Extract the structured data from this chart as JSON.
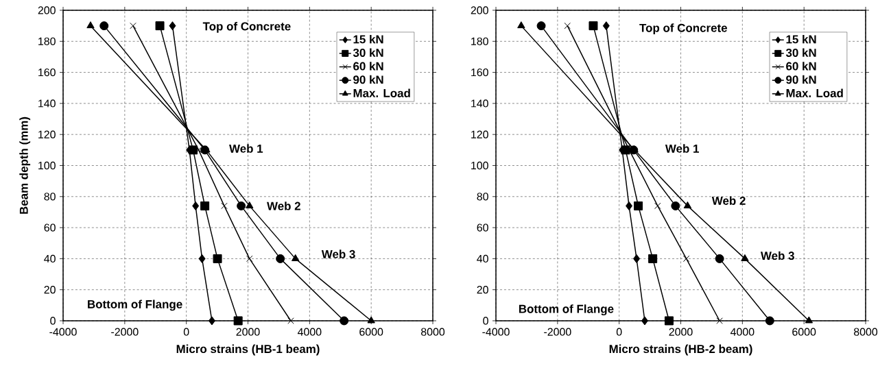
{
  "chart_data": [
    {
      "type": "line",
      "xlabel": "Micro strains (HB-1 beam)",
      "ylabel": "Beam depth (mm)",
      "grid": true,
      "legend": "top right",
      "line_style": "solid",
      "xlim": [
        -4000,
        8000
      ],
      "ylim": [
        0,
        200
      ],
      "xticks": [
        -4000,
        -2000,
        0,
        2000,
        4000,
        6000,
        8000
      ],
      "yticks": [
        0,
        20,
        40,
        60,
        80,
        100,
        120,
        140,
        160,
        180,
        200
      ],
      "series": [
        {
          "name": "15 kN",
          "color": "#000000",
          "marker": "diamond",
          "x": [
            -450,
            100,
            300,
            510,
            830
          ],
          "values": [
            190,
            110,
            74,
            40,
            0
          ]
        },
        {
          "name": "30 kN",
          "color": "#000000",
          "marker": "square",
          "x": [
            -860,
            220,
            600,
            1010,
            1680
          ],
          "values": [
            190,
            110,
            74,
            40,
            0
          ]
        },
        {
          "name": "60 kN",
          "color": "#000000",
          "marker": "cross",
          "x": [
            -1730,
            400,
            1230,
            2050,
            3390
          ],
          "values": [
            190,
            110,
            74,
            40,
            0
          ]
        },
        {
          "name": "90 kN",
          "color": "#000000",
          "marker": "circle",
          "x": [
            -2670,
            600,
            1780,
            3050,
            5120
          ],
          "values": [
            190,
            110,
            74,
            40,
            0
          ]
        },
        {
          "name": "Max. Load",
          "color": "#000000",
          "marker": "triangle",
          "x": [
            -3110,
            650,
            2050,
            3540,
            6000
          ],
          "values": [
            190,
            110,
            74,
            40,
            0
          ]
        }
      ],
      "annotations": [
        "Top of Concrete",
        "Web 1",
        "Web 2",
        "Web 3",
        "Bottom of Flange"
      ]
    },
    {
      "type": "line",
      "xlabel": "Micro strains (HB-2 beam)",
      "grid": true,
      "legend": "top right",
      "line_style": "solid",
      "xlim": [
        -4000,
        8000
      ],
      "ylim": [
        0,
        200
      ],
      "xticks": [
        -4000,
        -2000,
        0,
        2000,
        4000,
        6000,
        8000
      ],
      "yticks": [
        0,
        20,
        40,
        60,
        80,
        100,
        120,
        140,
        160,
        180,
        200
      ],
      "series": [
        {
          "name": "15 kN",
          "color": "#000000",
          "marker": "diamond",
          "x": [
            -420,
            100,
            320,
            565,
            830
          ],
          "values": [
            190,
            110,
            74,
            40,
            0
          ]
        },
        {
          "name": "30 kN",
          "color": "#000000",
          "marker": "square",
          "x": [
            -840,
            210,
            620,
            1090,
            1620
          ],
          "values": [
            190,
            110,
            74,
            40,
            0
          ]
        },
        {
          "name": "60 kN",
          "color": "#000000",
          "marker": "cross",
          "x": [
            -1680,
            330,
            1250,
            2180,
            3260
          ],
          "values": [
            190,
            110,
            74,
            40,
            0
          ]
        },
        {
          "name": "90 kN",
          "color": "#000000",
          "marker": "circle",
          "x": [
            -2530,
            470,
            1830,
            3260,
            4890
          ],
          "values": [
            190,
            110,
            74,
            40,
            0
          ]
        },
        {
          "name": "Max. Load",
          "color": "#000000",
          "marker": "triangle",
          "x": [
            -3180,
            500,
            2220,
            4080,
            6160
          ],
          "values": [
            190,
            110,
            74,
            40,
            0
          ]
        }
      ],
      "annotations": [
        "Top of Concrete",
        "Web 1",
        "Web 2",
        "Web 3",
        "Bottom of Flange"
      ]
    }
  ]
}
